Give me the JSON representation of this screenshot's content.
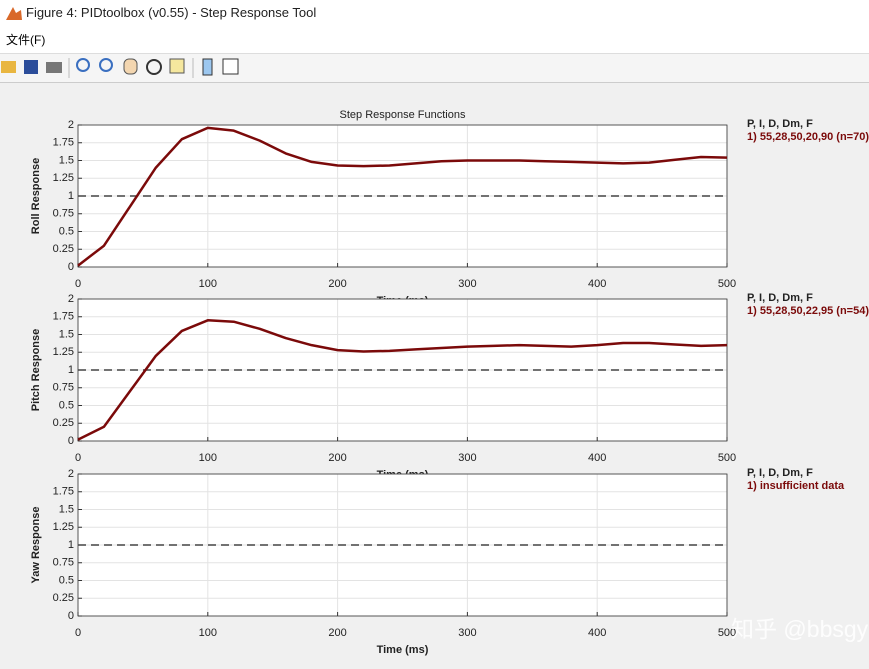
{
  "window": {
    "title": "Figure 4: PIDtoolbox (v0.55) - Step Response Tool",
    "menu": [
      "文件(F)"
    ],
    "watermark": "知乎 @bbsgyd"
  },
  "chart_data": [
    {
      "type": "line",
      "title": "Step Response Functions",
      "ylabel": "Roll Response",
      "xlabel": "Time (ms)",
      "legend_title": "P, I, D, Dm, F",
      "reference_line": 1,
      "x": [
        0,
        20,
        40,
        60,
        80,
        100,
        120,
        140,
        160,
        180,
        200,
        220,
        240,
        260,
        280,
        300,
        320,
        340,
        360,
        380,
        400,
        420,
        440,
        460,
        480,
        500
      ],
      "series": [
        {
          "name": "1) 55,28,50,20,90  (n=70)",
          "color": "#7b0a0a",
          "values": [
            0.02,
            0.3,
            0.85,
            1.4,
            1.8,
            1.96,
            1.92,
            1.78,
            1.6,
            1.48,
            1.43,
            1.42,
            1.43,
            1.46,
            1.49,
            1.5,
            1.5,
            1.5,
            1.49,
            1.48,
            1.47,
            1.46,
            1.47,
            1.51,
            1.55,
            1.54
          ]
        }
      ],
      "xlim": [
        0,
        500
      ],
      "xticks": [
        0,
        100,
        200,
        300,
        400,
        500
      ],
      "ylim": [
        0,
        2
      ],
      "yticks": [
        0,
        0.25,
        0.5,
        0.75,
        1,
        1.25,
        1.5,
        1.75,
        2
      ],
      "grid": true
    },
    {
      "type": "line",
      "ylabel": "Pitch Response",
      "xlabel": "Time (ms)",
      "legend_title": "P, I, D, Dm, F",
      "reference_line": 1,
      "x": [
        0,
        20,
        40,
        60,
        80,
        100,
        120,
        140,
        160,
        180,
        200,
        220,
        240,
        260,
        280,
        300,
        320,
        340,
        360,
        380,
        400,
        420,
        440,
        460,
        480,
        500
      ],
      "series": [
        {
          "name": "1) 55,28,50,22,95  (n=54)",
          "color": "#7b0a0a",
          "values": [
            0.02,
            0.2,
            0.7,
            1.2,
            1.55,
            1.7,
            1.68,
            1.58,
            1.45,
            1.35,
            1.28,
            1.26,
            1.27,
            1.29,
            1.31,
            1.33,
            1.34,
            1.35,
            1.34,
            1.33,
            1.35,
            1.38,
            1.38,
            1.36,
            1.34,
            1.35
          ]
        }
      ],
      "xlim": [
        0,
        500
      ],
      "xticks": [
        0,
        100,
        200,
        300,
        400,
        500
      ],
      "ylim": [
        0,
        2
      ],
      "yticks": [
        0,
        0.25,
        0.5,
        0.75,
        1,
        1.25,
        1.5,
        1.75,
        2
      ],
      "grid": true
    },
    {
      "type": "line",
      "ylabel": "Yaw Response",
      "xlabel": "Time (ms)",
      "legend_title": "P, I, D, Dm, F",
      "reference_line": 1,
      "x": [],
      "series": [
        {
          "name": "1) insufficient data",
          "color": "#7b0a0a",
          "values": []
        }
      ],
      "xlim": [
        0,
        500
      ],
      "xticks": [
        0,
        100,
        200,
        300,
        400,
        500
      ],
      "ylim": [
        0,
        2
      ],
      "yticks": [
        0,
        0.25,
        0.5,
        0.75,
        1,
        1.25,
        1.5,
        1.75,
        2
      ],
      "grid": true
    }
  ]
}
